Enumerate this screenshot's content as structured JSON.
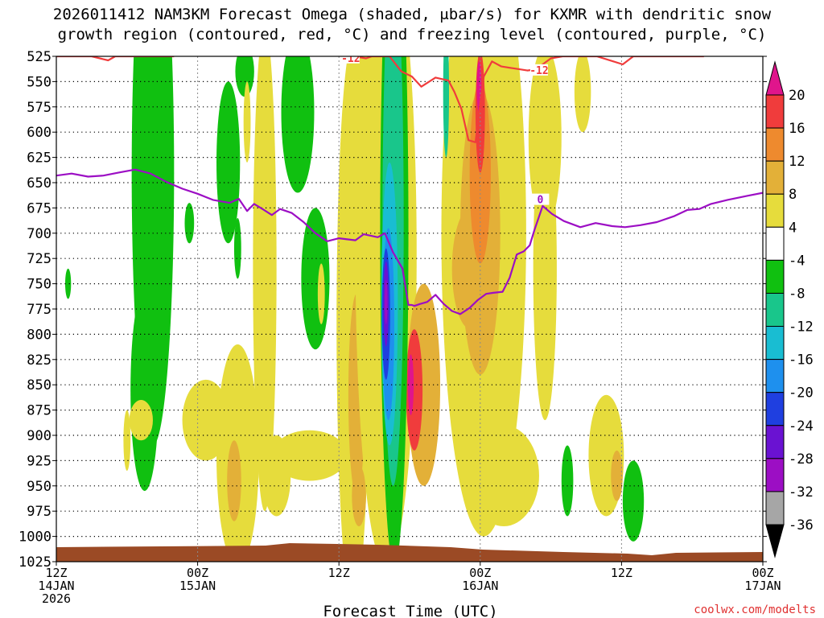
{
  "chart_data": {
    "type": "heatmap",
    "title_line1": "2026011412 NAM3KM Forecast Omega (shaded, μbar/s) for KXMR with dendritic snow",
    "title_line2": "growth region (contoured, red, °C) and freezing level (contoured, purple, °C)",
    "xlabel": "Forecast Time (UTC)",
    "ylabel": "Pressure (hPa)",
    "credit": "coolwx.com/modelts",
    "x_range_hours": [
      0,
      60
    ],
    "y_range_hpa": [
      525,
      1025
    ],
    "y_ticks": [
      525,
      550,
      575,
      600,
      625,
      650,
      675,
      700,
      725,
      750,
      775,
      800,
      825,
      850,
      875,
      900,
      925,
      950,
      975,
      1000,
      1025
    ],
    "x_ticks": [
      {
        "hour": 0,
        "line1": "12Z",
        "line2": "14JAN",
        "line3": "2026"
      },
      {
        "hour": 12,
        "line1": "00Z",
        "line2": "15JAN",
        "line3": ""
      },
      {
        "hour": 24,
        "line1": "12Z",
        "line2": "",
        "line3": ""
      },
      {
        "hour": 36,
        "line1": "00Z",
        "line2": "16JAN",
        "line3": ""
      },
      {
        "hour": 48,
        "line1": "12Z",
        "line2": "",
        "line3": ""
      },
      {
        "hour": 60,
        "line1": "00Z",
        "line2": "17JAN",
        "line3": ""
      }
    ],
    "colorbar": {
      "labels": [
        "20",
        "16",
        "12",
        "8",
        "4",
        "-4",
        "-8",
        "-12",
        "-16",
        "-20",
        "-24",
        "-28",
        "-32",
        "-36"
      ],
      "bins": [
        {
          "min": 20,
          "max": 24,
          "color": "#e0158c"
        },
        {
          "min": 16,
          "max": 20,
          "color": "#f03c3c"
        },
        {
          "min": 12,
          "max": 16,
          "color": "#ee8a2e"
        },
        {
          "min": 8,
          "max": 12,
          "color": "#e3b038"
        },
        {
          "min": 4,
          "max": 8,
          "color": "#e6dc3c"
        },
        {
          "min": -4,
          "max": 4,
          "color": "#ffffff"
        },
        {
          "min": -8,
          "max": -4,
          "color": "#10c010"
        },
        {
          "min": -12,
          "max": -8,
          "color": "#19c68b"
        },
        {
          "min": -16,
          "max": -12,
          "color": "#19bdd2"
        },
        {
          "min": -20,
          "max": -16,
          "color": "#1e90ee"
        },
        {
          "min": -24,
          "max": -20,
          "color": "#1f3fe0"
        },
        {
          "min": -28,
          "max": -24,
          "color": "#6a12d2"
        },
        {
          "min": -32,
          "max": -28,
          "color": "#9c0ec4"
        },
        {
          "min": -36,
          "max": -32,
          "color": "#a6a6a6"
        }
      ],
      "below_color": "#000000"
    },
    "omega_features": [
      {
        "hour": 8.2,
        "p": 640,
        "hw": 1.8,
        "hp": 270,
        "omega": -6
      },
      {
        "hour": 7.5,
        "p": 855,
        "hw": 1.2,
        "hp": 100,
        "omega": -6
      },
      {
        "hour": 11.3,
        "p": 690,
        "hw": 0.4,
        "hp": 20,
        "omega": -6
      },
      {
        "hour": 1.0,
        "p": 750,
        "hw": 0.25,
        "hp": 15,
        "omega": -6
      },
      {
        "hour": 14.6,
        "p": 630,
        "hw": 1.0,
        "hp": 80,
        "omega": -6
      },
      {
        "hour": 15.4,
        "p": 715,
        "hw": 0.3,
        "hp": 30,
        "omega": -6
      },
      {
        "hour": 17.7,
        "p": 600,
        "hw": 0.5,
        "hp": 50,
        "omega": -6
      },
      {
        "hour": 20.5,
        "p": 580,
        "hw": 1.4,
        "hp": 80,
        "omega": -6
      },
      {
        "hour": 22.0,
        "p": 745,
        "hw": 1.2,
        "hp": 70,
        "omega": -6
      },
      {
        "hour": 16.0,
        "p": 540,
        "hw": 0.8,
        "hp": 25,
        "omega": -6
      },
      {
        "hour": 19.9,
        "p": 616,
        "hw": 0.3,
        "hp": 28,
        "omega": -6
      },
      {
        "hour": 43.4,
        "p": 945,
        "hw": 0.5,
        "hp": 35,
        "omega": -6
      },
      {
        "hour": 49.0,
        "p": 965,
        "hw": 0.9,
        "hp": 40,
        "omega": -6
      },
      {
        "hour": 16.2,
        "p": 590,
        "hw": 0.3,
        "hp": 40,
        "omega": 6
      },
      {
        "hour": 17.7,
        "p": 735,
        "hw": 1.0,
        "hp": 240,
        "omega": 6
      },
      {
        "hour": 12.7,
        "p": 885,
        "hw": 2.0,
        "hp": 40,
        "omega": 6
      },
      {
        "hour": 6.0,
        "p": 905,
        "hw": 0.3,
        "hp": 30,
        "omega": 6
      },
      {
        "hour": 15.4,
        "p": 920,
        "hw": 1.8,
        "hp": 110,
        "omega": 6
      },
      {
        "hour": 15.1,
        "p": 945,
        "hw": 0.6,
        "hp": 40,
        "omega": 11
      },
      {
        "hour": 18.7,
        "p": 940,
        "hw": 1.2,
        "hp": 40,
        "omega": 6
      },
      {
        "hour": 21.5,
        "p": 920,
        "hw": 3.2,
        "hp": 25,
        "omega": 6
      },
      {
        "hour": 25.2,
        "p": 790,
        "hw": 1.4,
        "hp": 280,
        "omega": 6
      },
      {
        "hour": 25.5,
        "p": 860,
        "hw": 0.7,
        "hp": 100,
        "omega": 10
      },
      {
        "hour": 25.7,
        "p": 960,
        "hw": 0.6,
        "hp": 30,
        "omega": 10
      },
      {
        "hour": 26.2,
        "p": 560,
        "hw": 0.7,
        "hp": 90,
        "omega": 6
      },
      {
        "hour": 28.0,
        "p": 720,
        "hw": 2.6,
        "hp": 310,
        "omega": 6
      },
      {
        "hour": 31.2,
        "p": 850,
        "hw": 1.4,
        "hp": 100,
        "omega": 8
      },
      {
        "hour": 30.4,
        "p": 855,
        "hw": 0.7,
        "hp": 60,
        "omega": 16
      },
      {
        "hour": 30.1,
        "p": 850,
        "hw": 0.25,
        "hp": 30,
        "omega": 22
      },
      {
        "hour": 36.3,
        "p": 700,
        "hw": 3.6,
        "hp": 300,
        "omega": 6
      },
      {
        "hour": 36.0,
        "p": 700,
        "hw": 1.7,
        "hp": 140,
        "omega": 10
      },
      {
        "hour": 35.2,
        "p": 735,
        "hw": 1.6,
        "hp": 60,
        "omega": 10
      },
      {
        "hour": 36.0,
        "p": 640,
        "hw": 0.9,
        "hp": 90,
        "omega": 12
      },
      {
        "hour": 36.0,
        "p": 580,
        "hw": 0.4,
        "hp": 60,
        "omega": 16
      },
      {
        "hour": 35.9,
        "p": 555,
        "hw": 0.2,
        "hp": 25,
        "omega": 21
      },
      {
        "hour": 38.0,
        "p": 940,
        "hw": 3.0,
        "hp": 50,
        "omega": 6
      },
      {
        "hour": 41.5,
        "p": 605,
        "hw": 1.4,
        "hp": 90,
        "omega": 6
      },
      {
        "hour": 41.5,
        "p": 735,
        "hw": 1.0,
        "hp": 150,
        "omega": 6
      },
      {
        "hour": 44.7,
        "p": 560,
        "hw": 0.7,
        "hp": 40,
        "omega": 6
      },
      {
        "hour": 46.7,
        "p": 920,
        "hw": 1.5,
        "hp": 60,
        "omega": 6
      },
      {
        "hour": 47.6,
        "p": 940,
        "hw": 0.5,
        "hp": 25,
        "omega": 10
      },
      {
        "hour": 7.2,
        "p": 885,
        "hw": 1.0,
        "hp": 20,
        "omega": 6
      },
      {
        "hour": 22.5,
        "p": 760,
        "hw": 0.3,
        "hp": 30,
        "omega": 6
      },
      {
        "hour": 28.7,
        "p": 700,
        "hw": 1.2,
        "hp": 330,
        "omega": -6
      },
      {
        "hour": 28.6,
        "p": 690,
        "hw": 0.9,
        "hp": 260,
        "omega": -10
      },
      {
        "hour": 28.3,
        "p": 770,
        "hw": 0.7,
        "hp": 140,
        "omega": -14
      },
      {
        "hour": 28.2,
        "p": 790,
        "hw": 0.5,
        "hp": 95,
        "omega": -18
      },
      {
        "hour": 28.0,
        "p": 780,
        "hw": 0.35,
        "hp": 65,
        "omega": -22
      },
      {
        "hour": 28.0,
        "p": 770,
        "hw": 0.22,
        "hp": 42,
        "omega": -26
      },
      {
        "hour": 28.0,
        "p": 768,
        "hw": 0.12,
        "hp": 22,
        "omega": -30
      },
      {
        "hour": 33.1,
        "p": 560,
        "hw": 0.25,
        "hp": 65,
        "omega": -10
      }
    ],
    "series": [
      {
        "name": "dendritic snow growth region -12 °C",
        "color": "#f03c3c",
        "contour_label": "-12",
        "x": [
          0.0,
          1.5,
          3.0,
          4.4,
          5.0,
          9.0,
          10.0
        ],
        "y": [
          525,
          525,
          525,
          529,
          525,
          525,
          525
        ],
        "x2": [
          25.3,
          26.3,
          26.8,
          28.3,
          29.3,
          30.2,
          31.0,
          32.2,
          33.3,
          33.8,
          34.4,
          35.0,
          35.6,
          36.3,
          37.0,
          37.8,
          38.9,
          40.0,
          40.7,
          41.3,
          42.0,
          43.0,
          44.7,
          45.9,
          47.3,
          48.1,
          49.0,
          50.0,
          51.0,
          52.0,
          53.0,
          54.0,
          55.0
        ],
        "y2": [
          525,
          527,
          525,
          525,
          540,
          545,
          555,
          546,
          549,
          560,
          577,
          608,
          610,
          545,
          530,
          535,
          537,
          539,
          538,
          533,
          527,
          525,
          525,
          525,
          530,
          533,
          525,
          525,
          525,
          525,
          525,
          525,
          525
        ]
      },
      {
        "name": "freezing level 0 °C",
        "color": "#9c0ec4",
        "contour_label": "0",
        "x": [
          0.0,
          1.3,
          2.7,
          4.0,
          5.3,
          6.7,
          8.0,
          9.3,
          10.7,
          12.0,
          13.3,
          14.7,
          15.5,
          16.2,
          16.8,
          17.5,
          18.3,
          19.0,
          20.0,
          21.0,
          22.0,
          23.0,
          24.0,
          25.4,
          26.1,
          27.3,
          27.9,
          28.6,
          29.4,
          29.9,
          30.2,
          30.4,
          30.9,
          31.5,
          32.2,
          32.9,
          33.6,
          34.3,
          35.1,
          35.8,
          36.5,
          37.1,
          37.9,
          38.5,
          39.1,
          39.7,
          40.2,
          40.6,
          41.3,
          42.1,
          43.1,
          44.5,
          45.8,
          47.2,
          48.3,
          49.6,
          51.0,
          52.5,
          53.6,
          54.6,
          55.6,
          57.0,
          58.7,
          60.0
        ],
        "y": [
          643,
          641,
          644,
          643,
          640,
          637,
          641,
          649,
          656,
          661,
          667,
          670,
          666,
          678,
          671,
          676,
          682,
          676,
          680,
          689,
          700,
          708,
          705,
          707,
          701,
          704,
          700,
          719,
          735,
          771,
          771,
          772,
          770,
          768,
          761,
          770,
          777,
          780,
          774,
          766,
          760,
          759,
          758,
          744,
          721,
          718,
          712,
          697,
          673,
          681,
          688,
          694,
          690,
          693,
          694,
          692,
          689,
          683,
          677,
          676,
          671,
          667,
          663,
          660
        ]
      }
    ]
  }
}
